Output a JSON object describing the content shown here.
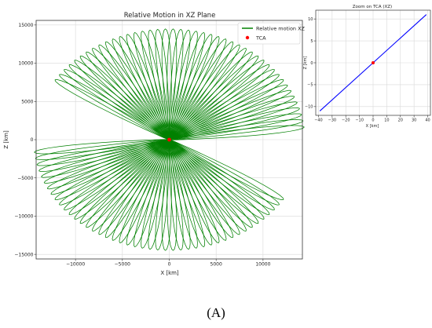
{
  "chart_data": [
    {
      "type": "line",
      "title": "Relative Motion in XZ Plane",
      "xlabel": "X [km]",
      "ylabel": "Z [km]",
      "xlim": [
        -14200,
        14200
      ],
      "ylim": [
        -15600,
        15600
      ],
      "xticks": [
        -10000,
        -5000,
        0,
        5000,
        10000
      ],
      "xtick_labels": [
        "−10000",
        "−5000",
        "0",
        "5000",
        "10000"
      ],
      "yticks": [
        -15000,
        -10000,
        -5000,
        0,
        5000,
        10000,
        15000
      ],
      "ytick_labels": [
        "−15000",
        "−10000",
        "−5000",
        "0",
        "5000",
        "10000",
        "15000"
      ],
      "grid": true,
      "legend_position": "upper-right",
      "series": [
        {
          "name": "Relative motion XZ",
          "color": "#008000",
          "style": "line",
          "description_values": {
            "max_radius_km": 14500,
            "num_lobes": 110,
            "wedge_gap_left_deg": [
              150,
              185
            ],
            "wedge_gap_right_deg": [
              330,
              365
            ]
          }
        },
        {
          "name": "TCA",
          "color": "#ff0000",
          "style": "point",
          "x": [
            0
          ],
          "y": [
            0
          ]
        }
      ]
    },
    {
      "type": "line",
      "title": "Zoom on TCA (XZ)",
      "xlabel": "X [km]",
      "ylabel": "Z [km]",
      "xlim": [
        -42,
        42
      ],
      "ylim": [
        -12,
        12
      ],
      "xticks": [
        -40,
        -30,
        -20,
        -10,
        0,
        10,
        20,
        30,
        40
      ],
      "xtick_labels": [
        "−40",
        "−30",
        "−20",
        "−10",
        "0",
        "10",
        "20",
        "30",
        "40"
      ],
      "yticks": [
        -10,
        -5,
        0,
        5,
        10
      ],
      "ytick_labels": [
        "−10",
        "−5",
        "0",
        "5",
        "10"
      ],
      "grid": true,
      "series": [
        {
          "color": "#0000ff",
          "style": "line",
          "x": [
            -39,
            39
          ],
          "y": [
            -11,
            11
          ]
        },
        {
          "color": "#ff0000",
          "style": "point",
          "x": [
            0
          ],
          "y": [
            0
          ]
        }
      ]
    }
  ],
  "panel_label": "(A)"
}
